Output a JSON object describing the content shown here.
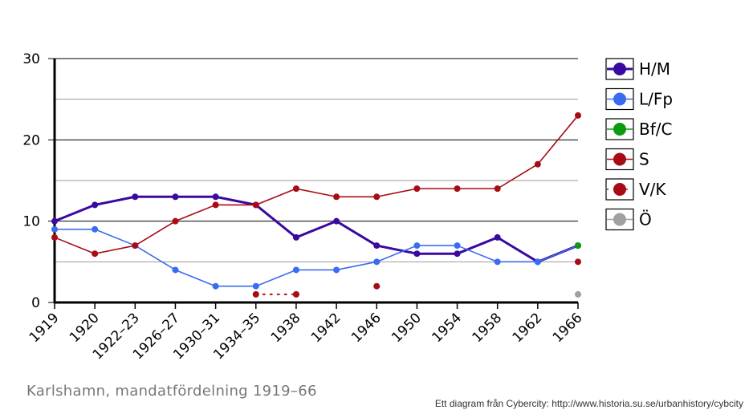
{
  "chart_data": {
    "type": "line",
    "title": "Karlshamn, mandatfördelning 1919–66",
    "categories": [
      "1919",
      "1920",
      "1922–23",
      "1926–27",
      "1930–31",
      "1934–35",
      "1938",
      "1942",
      "1946",
      "1950",
      "1954",
      "1958",
      "1962",
      "1966"
    ],
    "ylim": [
      0,
      30
    ],
    "yticks": [
      0,
      10,
      20,
      30
    ],
    "grid": true,
    "legend_position": "right",
    "series": [
      {
        "name": "H/M",
        "color": "#3a0aa0",
        "bold": true,
        "dotted": false,
        "values": [
          10,
          12,
          13,
          13,
          13,
          12,
          8,
          10,
          7,
          6,
          6,
          8,
          5,
          7
        ]
      },
      {
        "name": "L/Fp",
        "color": "#3b6cf0",
        "bold": false,
        "dotted": false,
        "values": [
          9,
          9,
          7,
          4,
          2,
          2,
          4,
          4,
          5,
          7,
          7,
          5,
          5,
          7
        ]
      },
      {
        "name": "Bf/C",
        "color": "#0b9a10",
        "bold": false,
        "dotted": false,
        "values": [
          null,
          null,
          null,
          null,
          null,
          null,
          null,
          null,
          null,
          null,
          null,
          null,
          null,
          7
        ]
      },
      {
        "name": "S",
        "color": "#a80b14",
        "bold": false,
        "dotted": false,
        "values": [
          8,
          6,
          7,
          10,
          12,
          12,
          14,
          13,
          13,
          14,
          14,
          14,
          17,
          23
        ]
      },
      {
        "name": "V/K",
        "color": "#a80b14",
        "bold": false,
        "dotted": true,
        "values": [
          null,
          null,
          null,
          null,
          null,
          1,
          1,
          null,
          2,
          null,
          null,
          null,
          null,
          5
        ]
      },
      {
        "name": "Ö",
        "color": "#a0a0a0",
        "bold": false,
        "dotted": false,
        "values": [
          null,
          null,
          null,
          null,
          null,
          null,
          null,
          null,
          null,
          null,
          null,
          null,
          null,
          1
        ]
      }
    ]
  },
  "caption": "Karlshamn, mandatfördelning 1919–66",
  "credit": "Ett diagram från Cybercity: http://www.historia.su.se/urbanhistory/cybcity"
}
